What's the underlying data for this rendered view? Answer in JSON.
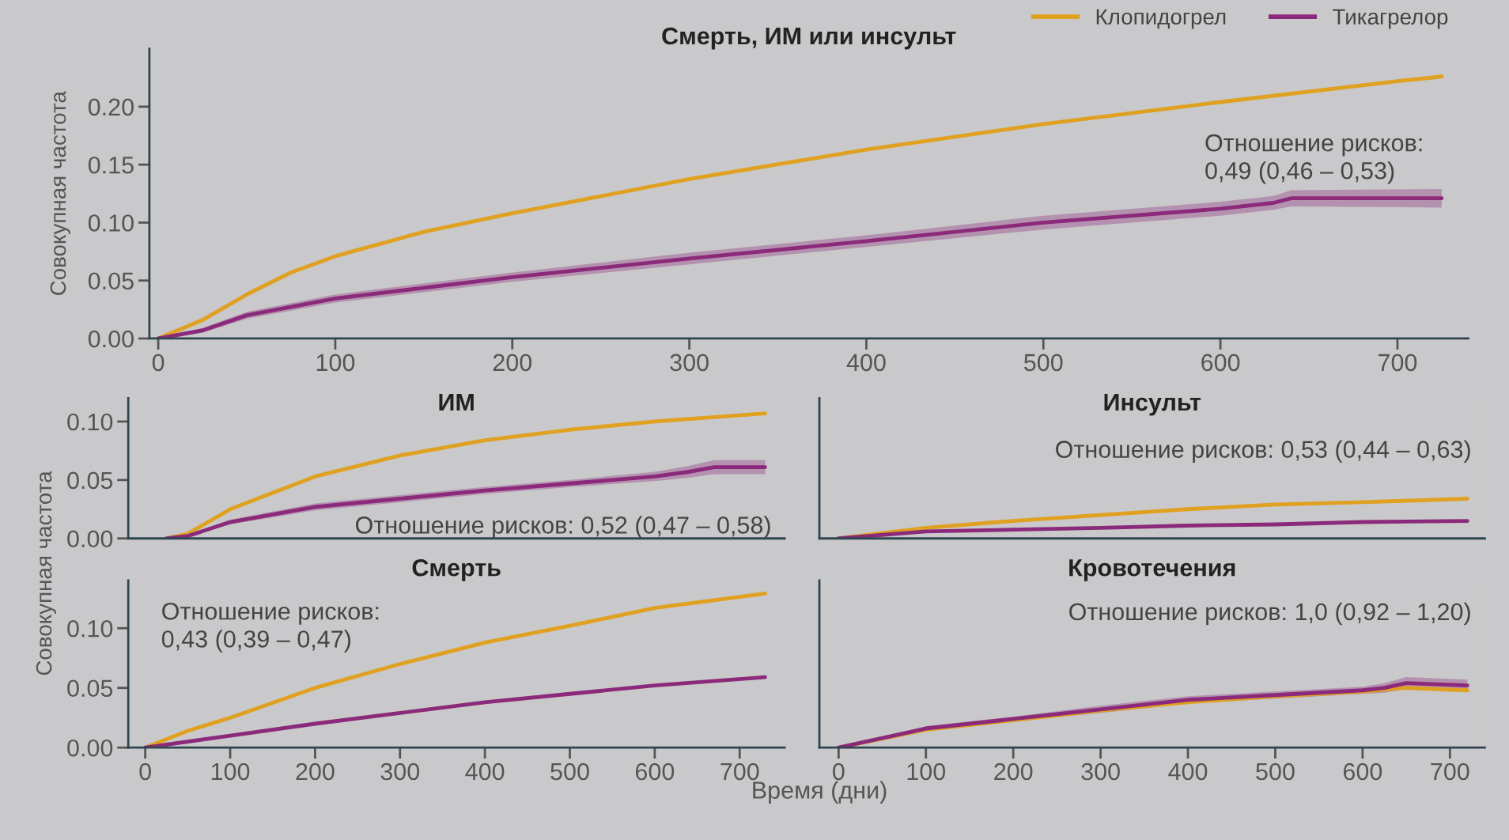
{
  "chart_data": [
    {
      "type": "line",
      "title": "Смерть, ИМ или инсульт",
      "ylabel": "Совокупная частота",
      "xlim": [
        -5,
        740
      ],
      "ylim": [
        0,
        0.25
      ],
      "xticks": [
        0,
        100,
        200,
        300,
        400,
        500,
        600,
        700
      ],
      "yticks": [
        {
          "value": 0,
          "label": "0.00"
        },
        {
          "value": 0.05,
          "label": "0.05"
        },
        {
          "value": 0.1,
          "label": "0.10"
        },
        {
          "value": 0.15,
          "label": "0.15"
        },
        {
          "value": 0.2,
          "label": "0.20"
        }
      ],
      "grid": false,
      "legend": "top right",
      "annotations": [
        "Отношение рисков:\n0,49 (0,46 – 0,53)"
      ],
      "series": [
        {
          "name": "Клопидогрел",
          "color": "#e0a020",
          "x": [
            0,
            25,
            50,
            75,
            100,
            150,
            200,
            300,
            400,
            500,
            600,
            700,
            725
          ],
          "values": [
            0,
            0.016,
            0.038,
            0.057,
            0.071,
            0.092,
            0.108,
            0.1375,
            0.163,
            0.185,
            0.204,
            0.222,
            0.226
          ]
        },
        {
          "name": "Тикагрелор",
          "color": "#8b2a7a",
          "x": [
            0,
            25,
            50,
            100,
            200,
            300,
            400,
            500,
            600,
            630,
            640,
            725
          ],
          "values": [
            0,
            0.007,
            0.02,
            0.0345,
            0.053,
            0.069,
            0.084,
            0.1,
            0.112,
            0.117,
            0.121,
            0.121
          ],
          "lower": [
            0,
            0.005,
            0.017,
            0.031,
            0.049,
            0.064,
            0.079,
            0.094,
            0.106,
            0.111,
            0.114,
            0.113
          ],
          "upper": [
            0,
            0.009,
            0.023,
            0.038,
            0.057,
            0.074,
            0.089,
            0.106,
            0.118,
            0.123,
            0.128,
            0.129
          ]
        }
      ]
    },
    {
      "type": "line",
      "title": "ИМ",
      "ylabel": "Совокупная частота",
      "xlim": [
        -20,
        753
      ],
      "ylim": [
        0,
        0.12
      ],
      "yticks": [
        {
          "value": 0,
          "label": "0.00"
        },
        {
          "value": 0.05,
          "label": "0.05"
        },
        {
          "value": 0.1,
          "label": "0.10"
        }
      ],
      "tick_labels": "y",
      "grid": false,
      "annotations": [
        "Отношение рисков: 0,52 (0,47 – 0,58)"
      ],
      "series": [
        {
          "color": "#e0a020",
          "x": [
            25,
            50,
            100,
            200,
            300,
            400,
            500,
            600,
            730
          ],
          "values": [
            0,
            0.004,
            0.025,
            0.053,
            0.071,
            0.084,
            0.093,
            0.1,
            0.107
          ]
        },
        {
          "color": "#8b2a7a",
          "x": [
            25,
            50,
            100,
            200,
            300,
            400,
            500,
            600,
            640,
            670,
            730
          ],
          "values": [
            0,
            0.002,
            0.014,
            0.027,
            0.034,
            0.041,
            0.047,
            0.053,
            0.057,
            0.061,
            0.061
          ],
          "lower": [
            0,
            0.001,
            0.012,
            0.024,
            0.031,
            0.038,
            0.044,
            0.049,
            0.052,
            0.055,
            0.055
          ],
          "upper": [
            0,
            0.003,
            0.016,
            0.03,
            0.037,
            0.044,
            0.05,
            0.057,
            0.062,
            0.067,
            0.067
          ]
        }
      ]
    },
    {
      "type": "line",
      "title": "Инсульт",
      "xlim": [
        -22,
        740
      ],
      "ylim": [
        0,
        0.12
      ],
      "tick_labels": false,
      "grid": false,
      "annotations": [
        "Отношение рисков: 0,53 (0,44 – 0,63)"
      ],
      "series": [
        {
          "color": "#e0a020",
          "x": [
            0,
            100,
            200,
            300,
            400,
            500,
            600,
            720
          ],
          "values": [
            0,
            0.009,
            0.015,
            0.02,
            0.025,
            0.029,
            0.031,
            0.034
          ]
        },
        {
          "color": "#8b2a7a",
          "x": [
            0,
            100,
            200,
            300,
            400,
            500,
            600,
            720
          ],
          "values": [
            0,
            0.006,
            0.0075,
            0.009,
            0.011,
            0.012,
            0.014,
            0.015
          ]
        }
      ]
    },
    {
      "type": "line",
      "title": "Смерть",
      "xlim": [
        -20,
        753
      ],
      "ylim": [
        0,
        0.14
      ],
      "xticks": [
        0,
        100,
        200,
        300,
        400,
        500,
        600,
        700
      ],
      "yticks": [
        {
          "value": 0,
          "label": "0.00"
        },
        {
          "value": 0.05,
          "label": "0.05"
        },
        {
          "value": 0.1,
          "label": "0.10"
        }
      ],
      "grid": false,
      "annotations": [
        "Отношение рисков:\n0,43 (0,39 – 0,47)"
      ],
      "series": [
        {
          "color": "#e0a020",
          "x": [
            0,
            50,
            100,
            200,
            300,
            400,
            500,
            600,
            730
          ],
          "values": [
            0,
            0.014,
            0.025,
            0.05,
            0.07,
            0.088,
            0.102,
            0.117,
            0.129
          ]
        },
        {
          "color": "#8b2a7a",
          "x": [
            0,
            100,
            200,
            300,
            400,
            500,
            600,
            730
          ],
          "values": [
            0,
            0.01,
            0.02,
            0.029,
            0.038,
            0.045,
            0.052,
            0.059
          ]
        }
      ]
    },
    {
      "type": "line",
      "title": "Кровотечения",
      "xlabel": "Время (дни)",
      "xlim": [
        -22,
        740
      ],
      "ylim": [
        0,
        0.14
      ],
      "xticks": [
        0,
        100,
        200,
        300,
        400,
        500,
        600,
        700
      ],
      "tick_labels": "x",
      "grid": false,
      "annotations": [
        "Отношение рисков: 1,0 (0,92 – 1,20)"
      ],
      "series": [
        {
          "color": "#e0a020",
          "x": [
            0,
            100,
            200,
            300,
            400,
            500,
            600,
            650,
            720
          ],
          "values": [
            0,
            0.015,
            0.023,
            0.031,
            0.038,
            0.043,
            0.047,
            0.05,
            0.048
          ]
        },
        {
          "color": "#8b2a7a",
          "x": [
            0,
            100,
            200,
            300,
            400,
            500,
            600,
            625,
            650,
            720
          ],
          "values": [
            0,
            0.016,
            0.024,
            0.032,
            0.04,
            0.044,
            0.048,
            0.05,
            0.054,
            0.052
          ],
          "lower": [
            0,
            0.014,
            0.022,
            0.029,
            0.037,
            0.041,
            0.045,
            0.046,
            0.049,
            0.047
          ],
          "upper": [
            0,
            0.018,
            0.026,
            0.035,
            0.043,
            0.047,
            0.051,
            0.054,
            0.059,
            0.057
          ]
        }
      ]
    }
  ]
}
